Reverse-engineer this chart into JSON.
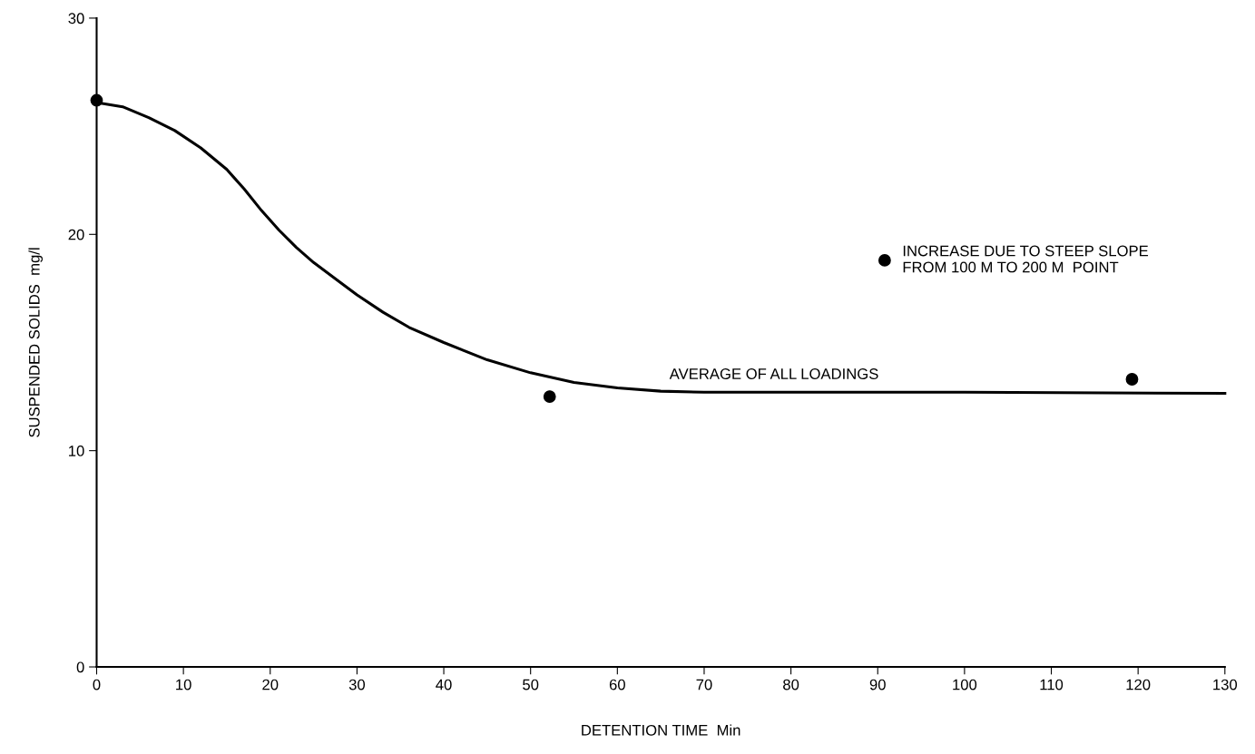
{
  "chart_data": {
    "type": "scatter",
    "xlabel": "DETENTION TIME  Min",
    "ylabel": "SUSPENDED SOLIDS  mg/l",
    "xlim": [
      0,
      130
    ],
    "ylim": [
      0,
      30
    ],
    "xticks": [
      0,
      10,
      20,
      30,
      40,
      50,
      60,
      70,
      80,
      90,
      100,
      110,
      120,
      130
    ],
    "yticks": [
      0,
      10,
      20,
      30
    ],
    "grid": false,
    "series": [
      {
        "type": "line",
        "color": "#000000",
        "marker": "none",
        "line_style": "solid",
        "x": [
          0,
          3,
          6,
          9,
          12,
          15,
          17,
          19,
          21,
          23,
          25,
          28,
          30,
          33,
          36,
          40,
          45,
          50,
          55,
          60,
          65,
          70,
          80,
          100,
          130
        ],
        "values": [
          26.1,
          25.9,
          25.4,
          24.8,
          24.0,
          23.0,
          22.1,
          21.1,
          20.2,
          19.4,
          18.7,
          17.8,
          17.2,
          16.4,
          15.7,
          15.0,
          14.2,
          13.6,
          13.15,
          12.9,
          12.75,
          12.7,
          12.7,
          12.7,
          12.65
        ]
      },
      {
        "color": "#000000",
        "marker": "circle",
        "x": [
          0,
          52.2,
          90.8,
          119.3
        ],
        "values": [
          26.2,
          12.5,
          18.8,
          13.3
        ]
      }
    ],
    "annotations": [
      {
        "text": "INCREASE DUE TO STEEP SLOPE\nFROM 100 M TO 200 M  POINT",
        "x": 90.8,
        "y": 18.8
      },
      {
        "text": "AVERAGE OF ALL LOADINGS",
        "x": 66,
        "y": 12.7
      }
    ]
  }
}
